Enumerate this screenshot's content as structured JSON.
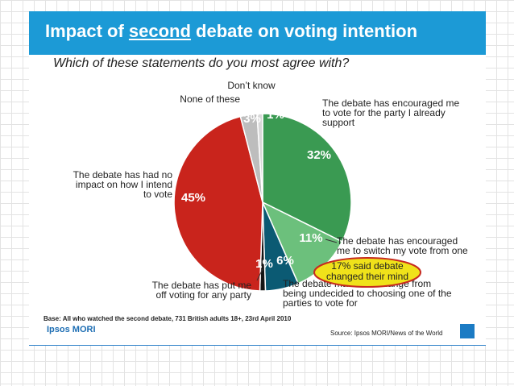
{
  "header": {
    "title_pre": "Impact of ",
    "title_emph": "second",
    "title_post": " debate on voting intention",
    "question": "Which of these statements do you most agree with?"
  },
  "chart_data": {
    "type": "pie",
    "slices": [
      {
        "label_lines": [
          "The debate has encouraged me",
          "to vote for the party I already",
          "support"
        ],
        "value": 32,
        "value_label": "32%",
        "color": "#3a9a52"
      },
      {
        "label_lines": [
          "The debate has encouraged",
          "me to switch my vote from one"
        ],
        "value": 11,
        "value_label": "11%",
        "color": "#6cc07c"
      },
      {
        "label_lines": [
          "The debate made me change from",
          "being undecided to choosing one of the",
          "parties to vote for"
        ],
        "value": 6,
        "value_label": "6%",
        "color": "#0b5a73"
      },
      {
        "label_lines": [
          "The debate has put me",
          "off voting for any party"
        ],
        "value": 1,
        "value_label": "1%",
        "color": "#151515"
      },
      {
        "label_lines": [
          "The debate has had no",
          "impact on how I intend",
          "to vote"
        ],
        "value": 45,
        "value_label": "45%",
        "color": "#c9241c"
      },
      {
        "label_lines": [
          "None of these"
        ],
        "value": 3,
        "value_label": "3%",
        "color": "#bdbdbd"
      },
      {
        "label_lines": [
          "Don’t know"
        ],
        "value": 1,
        "value_label": "1%",
        "color": "#d8d8d8"
      }
    ],
    "callout": {
      "lines": [
        "17% said debate",
        "changed their mind"
      ],
      "fill": "#f0e21a",
      "border": "#c62a20"
    }
  },
  "footer": {
    "base": "Base: All who watched the second debate, 731 British adults 18+, 23rd April 2010",
    "logo": "Ipsos MORI",
    "source": "Source: Ipsos MORI/News of the World"
  },
  "colors": {
    "title_bar": "#1c9ad6",
    "grid": "#e3e3e3"
  }
}
